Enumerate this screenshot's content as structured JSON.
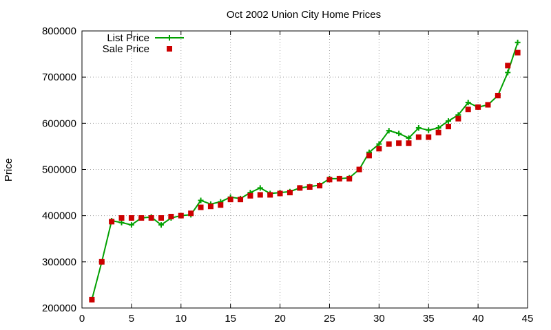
{
  "chart_data": {
    "type": "line",
    "title": "Oct 2002 Union City Home Prices",
    "xlabel": "",
    "ylabel": "Price",
    "xlim": [
      0,
      45
    ],
    "ylim": [
      200000,
      800000
    ],
    "x_ticks": [
      0,
      5,
      10,
      15,
      20,
      25,
      30,
      35,
      40,
      45
    ],
    "y_ticks": [
      200000,
      300000,
      400000,
      500000,
      600000,
      700000,
      800000
    ],
    "grid": true,
    "legend_position": "top-left",
    "x": [
      1,
      2,
      3,
      4,
      5,
      6,
      7,
      8,
      9,
      10,
      11,
      12,
      13,
      14,
      15,
      16,
      17,
      18,
      19,
      20,
      21,
      22,
      23,
      24,
      25,
      26,
      27,
      28,
      29,
      30,
      31,
      32,
      33,
      34,
      35,
      36,
      37,
      38,
      39,
      40,
      41,
      42,
      43,
      44
    ],
    "series": [
      {
        "name": "List Price",
        "style": "line-plus",
        "color": "#00a000",
        "values": [
          218000,
          300000,
          389000,
          385000,
          380000,
          395000,
          397000,
          380000,
          395000,
          400000,
          402000,
          433000,
          425000,
          430000,
          440000,
          437000,
          450000,
          460000,
          448000,
          450000,
          452000,
          460000,
          463000,
          466000,
          480000,
          480000,
          482000,
          500000,
          537000,
          555000,
          584000,
          578000,
          568000,
          590000,
          585000,
          590000,
          605000,
          618000,
          645000,
          635000,
          640000,
          660000,
          710000,
          775000
        ]
      },
      {
        "name": "Sale Price",
        "style": "square",
        "color": "#cc0000",
        "values": [
          218000,
          300000,
          387000,
          395000,
          395000,
          395000,
          395000,
          395000,
          398000,
          400000,
          405000,
          418000,
          420000,
          423000,
          435000,
          435000,
          443000,
          445000,
          445000,
          448000,
          450000,
          460000,
          462000,
          465000,
          478000,
          480000,
          480000,
          500000,
          530000,
          545000,
          555000,
          557000,
          557000,
          570000,
          570000,
          580000,
          593000,
          610000,
          630000,
          635000,
          640000,
          660000,
          725000,
          753000
        ]
      }
    ]
  }
}
